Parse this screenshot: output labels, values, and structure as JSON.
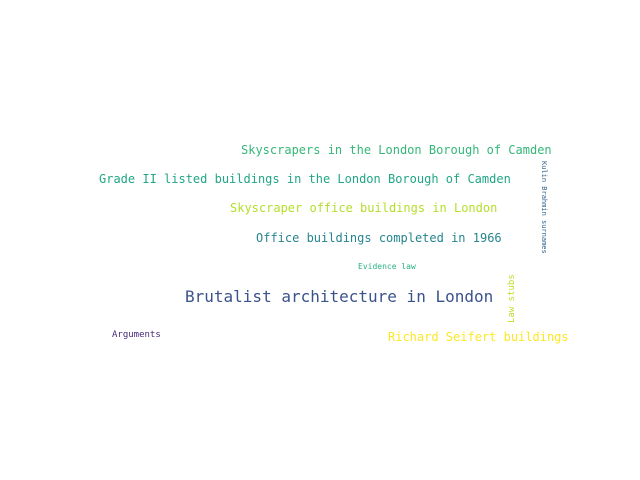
{
  "words": [
    {
      "text": "Skyscrapers in the London Borough of Camden",
      "color": "#35b779"
    },
    {
      "text": "Grade II listed buildings in the London Borough of Camden",
      "color": "#21a685"
    },
    {
      "text": "Skyscraper office buildings in London",
      "color": "#b5de2b"
    },
    {
      "text": "Office buildings completed in 1966",
      "color": "#25858e"
    },
    {
      "text": "Evidence law",
      "color": "#2ab07f"
    },
    {
      "text": "Brutalist architecture in London",
      "color": "#3b528b"
    },
    {
      "text": "Law stubs",
      "color": "#bddf26"
    },
    {
      "text": "Kulin Brahmin surnames",
      "color": "#33638d"
    },
    {
      "text": "Arguments",
      "color": "#482878"
    },
    {
      "text": "Richard Seifert buildings",
      "color": "#fde725"
    }
  ]
}
